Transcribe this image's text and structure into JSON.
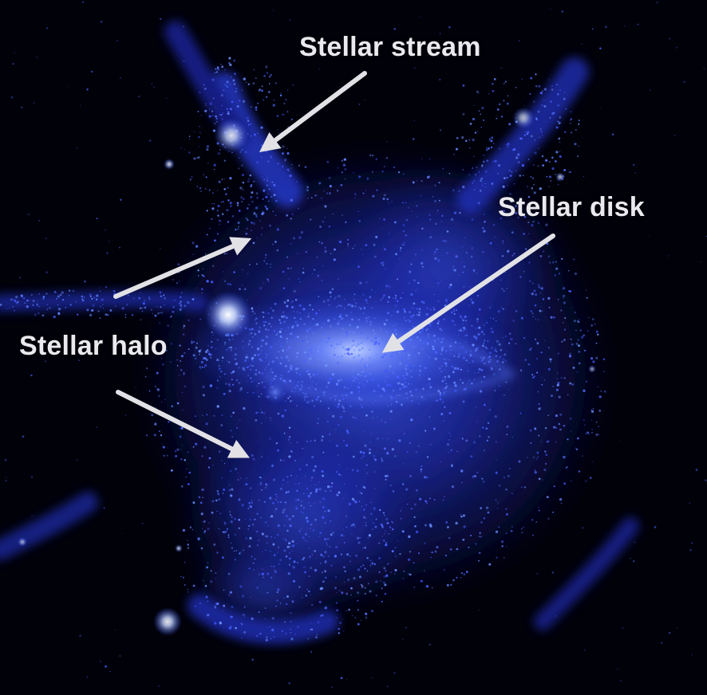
{
  "annotations": {
    "stellar_stream": "Stellar stream",
    "stellar_disk": "Stellar disk",
    "stellar_halo": "Stellar halo"
  },
  "colors": {
    "background": "#01010a",
    "glow_core": "#cfe0ff",
    "glow_mid": "#3d5cff",
    "glow_outer": "#1420a8",
    "arrow": "#e2e2e6",
    "label_text": "#e9e9ee"
  }
}
